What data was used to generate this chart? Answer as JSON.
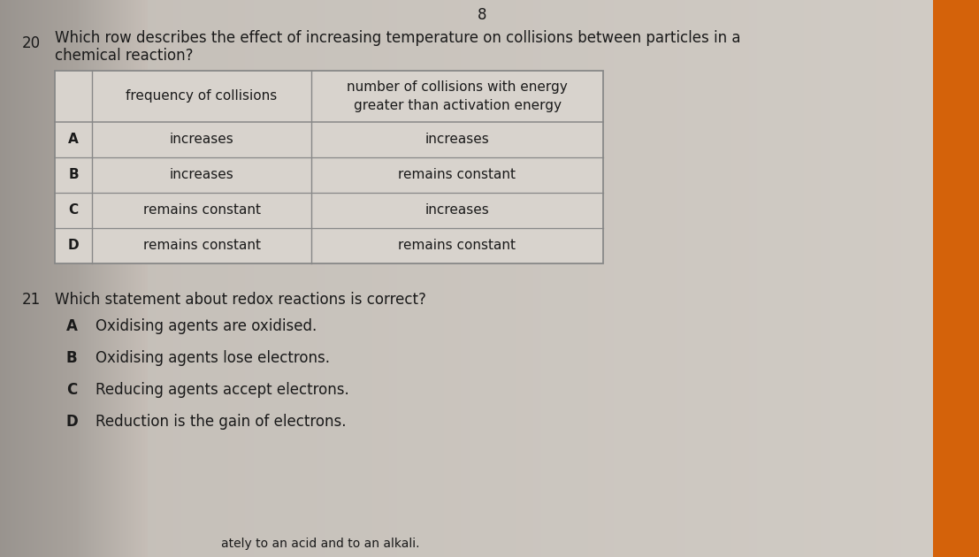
{
  "page_number": "8",
  "q20_number": "20",
  "q20_text_line1": "Which row describes the effect of increasing temperature on collisions between particles in a",
  "q20_text_line2": "chemical reaction?",
  "table_col1_header": "frequency of collisions",
  "table_col2_header": "number of collisions with energy\ngreater than activation energy",
  "table_rows": [
    {
      "row": "A",
      "col1": "increases",
      "col2": "increases"
    },
    {
      "row": "B",
      "col1": "increases",
      "col2": "remains constant"
    },
    {
      "row": "C",
      "col1": "remains constant",
      "col2": "increases"
    },
    {
      "row": "D",
      "col1": "remains constant",
      "col2": "remains constant"
    }
  ],
  "q21_number": "21",
  "q21_text": "Which statement about redox reactions is correct?",
  "q21_options": [
    {
      "label": "A",
      "text": "Oxidising agents are oxidised."
    },
    {
      "label": "B",
      "text": "Oxidising agents lose electrons."
    },
    {
      "label": "C",
      "text": "Reducing agents accept electrons."
    },
    {
      "label": "D",
      "text": "Reduction is the gain of electrons."
    }
  ],
  "footer_text": "ately to an acid and to an alkali.",
  "text_color": "#1a1a1a",
  "table_border_color": "#888888",
  "bg_left_color": "#b0aba5",
  "bg_mid_color": "#cdc8c2",
  "bg_right_color": "#c8c3bd",
  "orange_color": "#d4620a",
  "font_size_body": 12,
  "font_size_table": 11,
  "font_size_header": 11
}
